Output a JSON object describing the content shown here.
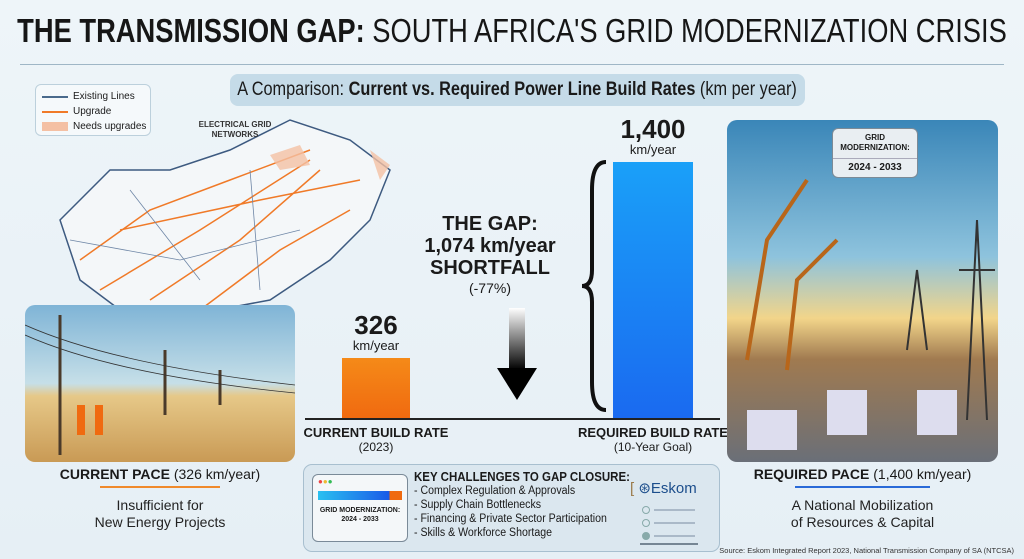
{
  "title": {
    "bold": "THE TRANSMISSION GAP:",
    "rest": "SOUTH AFRICA'S GRID MODERNIZATION CRISIS"
  },
  "subtitle": {
    "pre": "A Comparison: ",
    "bold": "Current vs. Required Power Line Build Rates",
    "post": " (km per year)"
  },
  "legend": [
    {
      "label": "Existing Lines",
      "color": "#4a6a8c"
    },
    {
      "label": "Upgrade",
      "color": "#f07a28"
    },
    {
      "label": "Needs upgrades",
      "color": "#f4c0a4"
    }
  ],
  "map_label": "ELECTRICAL GRID NETWORKS",
  "chart_data": {
    "type": "bar",
    "categories": [
      "CURRENT BUILD RATE",
      "REQUIRED BUILD RATE"
    ],
    "category_notes": [
      "(2023)",
      "(10-Year Goal)"
    ],
    "values": [
      326,
      1400
    ],
    "value_labels": [
      "326",
      "1,400"
    ],
    "unit": "km/year",
    "colors": [
      "#f06a10",
      "#1a6af0"
    ],
    "annotation": {
      "line1": "THE GAP:",
      "line2": "1,074 km/year",
      "line3": "SHORTFALL",
      "line4": "(-77%)"
    }
  },
  "left_panel": {
    "title_bold": "CURRENT PACE",
    "title_rest": " (326 km/year)",
    "subtitle1": "Insufficient for",
    "subtitle2": "New Energy Projects"
  },
  "right_panel": {
    "badge_line1": "GRID",
    "badge_line2": "MODERNIZATION:",
    "badge_years": "2024 - 2033",
    "title_bold": "REQUIRED PACE",
    "title_rest": " (1,400 km/year)",
    "subtitle1": "A National Mobilization",
    "subtitle2": "of Resources & Capital"
  },
  "challenges": {
    "mini_label": "GRID MODERNIZATION:",
    "mini_years": "2024 - 2033",
    "heading": "KEY CHALLENGES TO GAP CLOSURE:",
    "items": [
      "- Complex Regulation & Approvals",
      "- Supply Chain Bottlenecks",
      "- Financing & Private Sector Participation",
      "- Skills & Workforce Shortage"
    ],
    "logo": "Eskom"
  },
  "source": "Source: Eskom Integrated Report 2023, National Transmission Company of SA (NTCSA)"
}
